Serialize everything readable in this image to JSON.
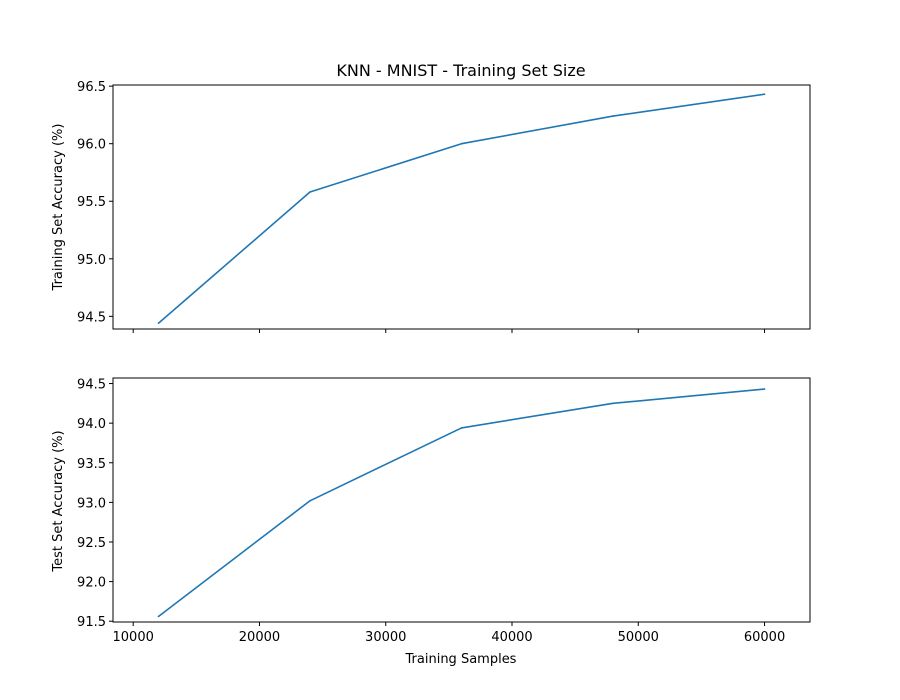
{
  "chart_data": [
    {
      "type": "line",
      "title": "KNN - MNIST - Training Set Size",
      "xlabel": "",
      "ylabel": "Training Set Accuracy (%)",
      "xlim": [
        8400,
        63600
      ],
      "ylim": [
        94.39,
        96.51
      ],
      "xticks": [
        10000,
        20000,
        30000,
        40000,
        50000,
        60000
      ],
      "xtick_labels_visible": false,
      "yticks": [
        94.5,
        95.0,
        95.5,
        96.0,
        96.5
      ],
      "ytick_labels": [
        "94.5",
        "95.0",
        "95.5",
        "96.0",
        "96.5"
      ],
      "grid": false,
      "legend": "none",
      "color": "#1f77b4",
      "x": [
        12000,
        24000,
        36000,
        48000,
        60000
      ],
      "y": [
        94.44,
        95.58,
        96.0,
        96.24,
        96.43
      ]
    },
    {
      "type": "line",
      "title": "",
      "xlabel": "Training Samples",
      "ylabel": "Test Set Accuracy (%)",
      "xlim": [
        8400,
        63600
      ],
      "ylim": [
        91.49,
        94.57
      ],
      "xticks": [
        10000,
        20000,
        30000,
        40000,
        50000,
        60000
      ],
      "xtick_labels": [
        "10000",
        "20000",
        "30000",
        "40000",
        "50000",
        "60000"
      ],
      "xtick_labels_visible": true,
      "yticks": [
        91.5,
        92.0,
        92.5,
        93.0,
        93.5,
        94.0,
        94.5
      ],
      "ytick_labels": [
        "91.5",
        "92.0",
        "92.5",
        "93.0",
        "93.5",
        "94.0",
        "94.5"
      ],
      "grid": false,
      "legend": "none",
      "color": "#1f77b4",
      "x": [
        12000,
        24000,
        36000,
        48000,
        60000
      ],
      "y": [
        91.56,
        93.02,
        93.94,
        94.25,
        94.43
      ]
    }
  ]
}
